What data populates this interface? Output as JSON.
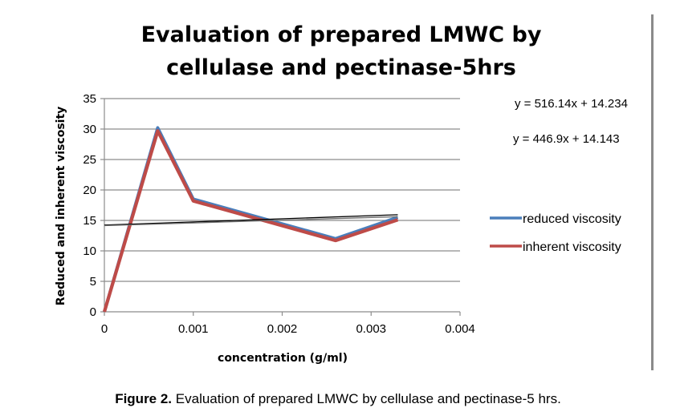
{
  "chart_data": {
    "type": "line",
    "title_lines": [
      "Evaluation of prepared LMWC by",
      "cellulase and pectinase-5hrs"
    ],
    "xlabel": "concentration (g/ml)",
    "ylabel": "Reduced and inherent viscosity",
    "xlim": [
      0,
      0.004
    ],
    "ylim": [
      0,
      35
    ],
    "xticks": [
      0,
      0.001,
      0.002,
      0.003,
      0.004
    ],
    "xtick_labels": [
      "0",
      "0.001",
      "0.002",
      "0.003",
      "0.004"
    ],
    "yticks": [
      0,
      5,
      10,
      15,
      20,
      25,
      30,
      35
    ],
    "ytick_labels": [
      "0",
      "5",
      "10",
      "15",
      "20",
      "25",
      "30",
      "35"
    ],
    "grid": "horizontal",
    "legend_position": "right",
    "series": [
      {
        "name": "reduced viscosity",
        "color": "#4a7ebb",
        "x": [
          0,
          0.0006,
          0.001,
          0.0026,
          0.0033
        ],
        "y": [
          0,
          30.2,
          18.5,
          12.0,
          15.5
        ]
      },
      {
        "name": "inherent viscosity",
        "color": "#be4b48",
        "x": [
          0,
          0.0006,
          0.001,
          0.0026,
          0.0033
        ],
        "y": [
          0,
          29.7,
          18.2,
          11.7,
          15.1
        ]
      }
    ],
    "trendlines": [
      {
        "equation": "y = 516.14x + 14.234",
        "slope": 516.14,
        "intercept": 14.234,
        "x_range": [
          0,
          0.0033
        ],
        "color": "#000000"
      },
      {
        "equation": "y = 446.9x + 14.143",
        "slope": 446.9,
        "intercept": 14.143,
        "x_range": [
          0,
          0.0033
        ],
        "color": "#6e6e6e"
      }
    ]
  },
  "caption": {
    "label": "Figure 2.",
    "text": " Evaluation of prepared LMWC by cellulase and pectinase-5 hrs."
  }
}
